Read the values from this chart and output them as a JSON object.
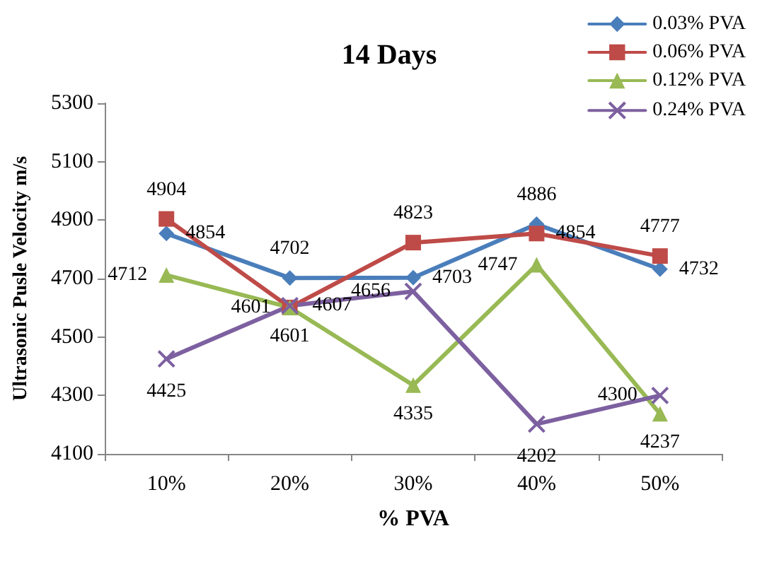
{
  "chart_data": {
    "type": "line",
    "title": "14 Days",
    "xlabel": "% PVA",
    "ylabel": "Ultrasonic Pusle Velocity m/s",
    "categories": [
      "10%",
      "20%",
      "30%",
      "40%",
      "50%"
    ],
    "series": [
      {
        "name": "0.03% PVA",
        "color": "#4a7ebb",
        "marker": "diamond",
        "values": [
          4854,
          4702,
          4703,
          4886,
          4732
        ]
      },
      {
        "name": "0.06% PVA",
        "color": "#be4b48",
        "marker": "square",
        "values": [
          4904,
          4601,
          4823,
          4854,
          4777
        ]
      },
      {
        "name": "0.12% PVA",
        "color": "#98b954",
        "marker": "triangle",
        "values": [
          4712,
          4601,
          4335,
          4747,
          4237
        ]
      },
      {
        "name": "0.24% PVA",
        "color": "#7d60a0",
        "marker": "cross",
        "values": [
          4425,
          4607,
          4656,
          4202,
          4300
        ]
      }
    ],
    "ylim": [
      4100,
      5300
    ],
    "yticks": [
      4100,
      4300,
      4500,
      4700,
      4900,
      5100,
      5300
    ],
    "grid": false,
    "legend": "top right",
    "data_labels": true,
    "line_style": "solid"
  }
}
